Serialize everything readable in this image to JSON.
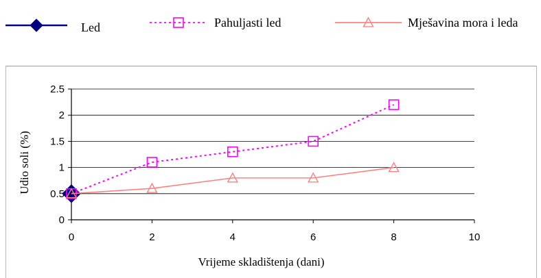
{
  "legend": {
    "items": [
      {
        "label": "Led",
        "color": "#000080",
        "marker": "diamond",
        "dash": "solid"
      },
      {
        "label": "Pahuljasti led",
        "color": "#ff00ff",
        "marker": "square",
        "dash": "dotted"
      },
      {
        "label": "Mješavina mora i leda",
        "color": "#ff8080",
        "marker": "triangle",
        "dash": "solid"
      }
    ]
  },
  "chart_data": {
    "type": "line",
    "title": "",
    "xlabel": "Vrijeme skladištenja (dani)",
    "ylabel": "Udio soli (%)",
    "xlim": [
      0,
      10
    ],
    "ylim": [
      0,
      2.5
    ],
    "xticks": [
      "0",
      "2",
      "4",
      "6",
      "8",
      "10"
    ],
    "yticks": [
      "0",
      "0.5",
      "1",
      "1.5",
      "2",
      "2.5"
    ],
    "grid": "horizontal",
    "legend_position": "top",
    "series": [
      {
        "name": "Led",
        "color": "#000080",
        "marker": "diamond",
        "dash": "solid",
        "points": [
          [
            0,
            0.5
          ]
        ]
      },
      {
        "name": "Pahuljasti led",
        "color": "#ff00ff",
        "marker": "square",
        "dash": "dotted",
        "points": [
          [
            0,
            0.5
          ],
          [
            2,
            1.1
          ],
          [
            4,
            1.3
          ],
          [
            6,
            1.5
          ],
          [
            8,
            2.2
          ]
        ]
      },
      {
        "name": "Mješavina mora i leda",
        "color": "#ff8080",
        "marker": "triangle",
        "dash": "solid",
        "points": [
          [
            0,
            0.5
          ],
          [
            2,
            0.6
          ],
          [
            4,
            0.8
          ],
          [
            6,
            0.8
          ],
          [
            8,
            1.0
          ]
        ]
      }
    ]
  }
}
